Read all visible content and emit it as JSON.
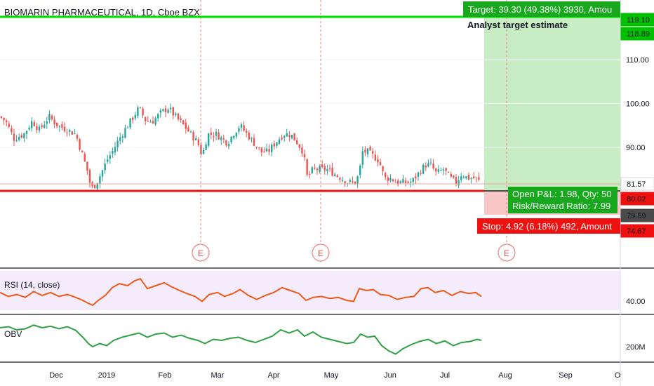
{
  "header": {
    "symbol_title": "BIOMARIN PHARMACEUTICAL, 1D, Cboe BZX"
  },
  "annotations": {
    "target_box": "Target: 39.30 (49.38%) 3930, Amou",
    "analyst_label": "Analyst target estimate",
    "pnl_line1": "Open P&L: 1.98, Qty: 50",
    "pnl_line2": "Risk/Reward Ratio: 7.99",
    "stop_box": "Stop: 4.92 (6.18%) 492, Amount",
    "earnings_marker": "E"
  },
  "price_badges": [
    {
      "label": "119.10",
      "value": 119.1,
      "color": "#00c000",
      "text_color": "#ffffff"
    },
    {
      "label": "118.89",
      "value": 118.89,
      "color": "#00c000",
      "text_color": "#ffffff"
    },
    {
      "label": "81.57",
      "value": 81.57,
      "color": "#ffffff",
      "text_color": "#131722"
    },
    {
      "label": "80.02",
      "value": 80.02,
      "color": "#ef1010",
      "text_color": "#ffffff"
    },
    {
      "label": "79.59",
      "value": 79.59,
      "color": "#4a4a4a",
      "text_color": "#ffffff"
    },
    {
      "label": "74.67",
      "value": 74.67,
      "color": "#ef1010",
      "text_color": "#ffffff"
    }
  ],
  "colors": {
    "up_candle": "#26a69a",
    "down_candle": "#ef5350",
    "rsi_line": "#f05a16",
    "obv_line": "#2ea043",
    "target_line": "#00e000",
    "support_line": "#e31414",
    "rsi_band": "#efe2fb"
  },
  "chart_data": [
    {
      "type": "candlestick",
      "title": "BIOMARIN PHARMACEUTICAL, 1D, Cboe BZX",
      "xlabel": "",
      "ylabel": "",
      "ylim": [
        70,
        122
      ],
      "y_ticks": [
        "110.00",
        "100.00",
        "90.00"
      ],
      "y_tick_values": [
        110,
        100,
        90
      ],
      "x_ticks": [
        "Dec",
        "2019",
        "Feb",
        "Mar",
        "Apr",
        "May",
        "Jun",
        "Jul",
        "Aug",
        "Sep",
        "O"
      ],
      "series": [
        {
          "close_path": [
            {
              "x": 0,
              "y": 97
            },
            {
              "x": 8,
              "y": 96
            },
            {
              "x": 20,
              "y": 92
            },
            {
              "x": 34,
              "y": 93
            },
            {
              "x": 46,
              "y": 96
            },
            {
              "x": 56,
              "y": 94
            },
            {
              "x": 70,
              "y": 97
            },
            {
              "x": 82,
              "y": 95
            },
            {
              "x": 96,
              "y": 94
            },
            {
              "x": 108,
              "y": 93
            },
            {
              "x": 116,
              "y": 89
            },
            {
              "x": 124,
              "y": 85
            },
            {
              "x": 130,
              "y": 80.5
            },
            {
              "x": 136,
              "y": 81.5
            },
            {
              "x": 144,
              "y": 84
            },
            {
              "x": 152,
              "y": 87
            },
            {
              "x": 160,
              "y": 89
            },
            {
              "x": 170,
              "y": 92
            },
            {
              "x": 178,
              "y": 94
            },
            {
              "x": 190,
              "y": 97
            },
            {
              "x": 198,
              "y": 99
            },
            {
              "x": 208,
              "y": 96
            },
            {
              "x": 218,
              "y": 96
            },
            {
              "x": 230,
              "y": 98
            },
            {
              "x": 240,
              "y": 99
            },
            {
              "x": 250,
              "y": 97
            },
            {
              "x": 262,
              "y": 95
            },
            {
              "x": 272,
              "y": 93
            },
            {
              "x": 282,
              "y": 91
            },
            {
              "x": 288,
              "y": 88
            },
            {
              "x": 296,
              "y": 93
            },
            {
              "x": 308,
              "y": 93
            },
            {
              "x": 316,
              "y": 92
            },
            {
              "x": 324,
              "y": 91
            },
            {
              "x": 332,
              "y": 93
            },
            {
              "x": 342,
              "y": 95
            },
            {
              "x": 352,
              "y": 93
            },
            {
              "x": 362,
              "y": 91
            },
            {
              "x": 372,
              "y": 89
            },
            {
              "x": 382,
              "y": 89
            },
            {
              "x": 392,
              "y": 91
            },
            {
              "x": 404,
              "y": 93
            },
            {
              "x": 414,
              "y": 93
            },
            {
              "x": 424,
              "y": 91
            },
            {
              "x": 432,
              "y": 89
            },
            {
              "x": 438,
              "y": 83
            },
            {
              "x": 446,
              "y": 85
            },
            {
              "x": 456,
              "y": 85
            },
            {
              "x": 466,
              "y": 85
            },
            {
              "x": 476,
              "y": 84
            },
            {
              "x": 486,
              "y": 83
            },
            {
              "x": 496,
              "y": 82
            },
            {
              "x": 506,
              "y": 82
            },
            {
              "x": 512,
              "y": 84
            },
            {
              "x": 516,
              "y": 89
            },
            {
              "x": 524,
              "y": 89
            },
            {
              "x": 532,
              "y": 88
            },
            {
              "x": 540,
              "y": 87
            },
            {
              "x": 548,
              "y": 83
            },
            {
              "x": 556,
              "y": 83
            },
            {
              "x": 566,
              "y": 82
            },
            {
              "x": 576,
              "y": 82
            },
            {
              "x": 586,
              "y": 82
            },
            {
              "x": 596,
              "y": 84
            },
            {
              "x": 606,
              "y": 86
            },
            {
              "x": 614,
              "y": 86
            },
            {
              "x": 622,
              "y": 84
            },
            {
              "x": 632,
              "y": 85
            },
            {
              "x": 642,
              "y": 83
            },
            {
              "x": 650,
              "y": 82
            },
            {
              "x": 658,
              "y": 84
            },
            {
              "x": 666,
              "y": 83
            },
            {
              "x": 676,
              "y": 83
            },
            {
              "x": 686,
              "y": 82
            }
          ]
        }
      ]
    },
    {
      "type": "line",
      "title": "RSI (14, close)",
      "ylim": [
        30,
        70
      ],
      "y_ticks": [
        "40.00"
      ],
      "y_tick_values": [
        40
      ],
      "series": [
        {
          "name": "RSI (14, close)",
          "values": [
            {
              "x": 0,
              "y": 48
            },
            {
              "x": 12,
              "y": 44
            },
            {
              "x": 24,
              "y": 46
            },
            {
              "x": 36,
              "y": 43
            },
            {
              "x": 48,
              "y": 49
            },
            {
              "x": 60,
              "y": 45
            },
            {
              "x": 72,
              "y": 48
            },
            {
              "x": 84,
              "y": 44
            },
            {
              "x": 96,
              "y": 46
            },
            {
              "x": 108,
              "y": 43
            },
            {
              "x": 118,
              "y": 40
            },
            {
              "x": 126,
              "y": 37
            },
            {
              "x": 132,
              "y": 35
            },
            {
              "x": 140,
              "y": 40
            },
            {
              "x": 150,
              "y": 45
            },
            {
              "x": 160,
              "y": 53
            },
            {
              "x": 170,
              "y": 57
            },
            {
              "x": 182,
              "y": 55
            },
            {
              "x": 192,
              "y": 60
            },
            {
              "x": 200,
              "y": 62
            },
            {
              "x": 210,
              "y": 52
            },
            {
              "x": 222,
              "y": 55
            },
            {
              "x": 234,
              "y": 58
            },
            {
              "x": 244,
              "y": 54
            },
            {
              "x": 256,
              "y": 50
            },
            {
              "x": 266,
              "y": 47
            },
            {
              "x": 278,
              "y": 44
            },
            {
              "x": 288,
              "y": 39
            },
            {
              "x": 298,
              "y": 46
            },
            {
              "x": 310,
              "y": 48
            },
            {
              "x": 320,
              "y": 44
            },
            {
              "x": 332,
              "y": 47
            },
            {
              "x": 342,
              "y": 51
            },
            {
              "x": 354,
              "y": 45
            },
            {
              "x": 366,
              "y": 41
            },
            {
              "x": 378,
              "y": 45
            },
            {
              "x": 390,
              "y": 48
            },
            {
              "x": 402,
              "y": 53
            },
            {
              "x": 414,
              "y": 50
            },
            {
              "x": 426,
              "y": 47
            },
            {
              "x": 436,
              "y": 40
            },
            {
              "x": 446,
              "y": 43
            },
            {
              "x": 458,
              "y": 44
            },
            {
              "x": 470,
              "y": 42
            },
            {
              "x": 482,
              "y": 43
            },
            {
              "x": 494,
              "y": 40
            },
            {
              "x": 504,
              "y": 39
            },
            {
              "x": 512,
              "y": 52
            },
            {
              "x": 522,
              "y": 50
            },
            {
              "x": 532,
              "y": 51
            },
            {
              "x": 542,
              "y": 46
            },
            {
              "x": 554,
              "y": 45
            },
            {
              "x": 566,
              "y": 41
            },
            {
              "x": 578,
              "y": 43
            },
            {
              "x": 590,
              "y": 44
            },
            {
              "x": 600,
              "y": 52
            },
            {
              "x": 610,
              "y": 53
            },
            {
              "x": 620,
              "y": 48
            },
            {
              "x": 632,
              "y": 50
            },
            {
              "x": 644,
              "y": 45
            },
            {
              "x": 656,
              "y": 49
            },
            {
              "x": 668,
              "y": 47
            },
            {
              "x": 678,
              "y": 48
            },
            {
              "x": 686,
              "y": 44
            }
          ]
        }
      ]
    },
    {
      "type": "line",
      "title": "OBV",
      "y_ticks": [
        "200M"
      ],
      "series": [
        {
          "name": "OBV",
          "values": [
            {
              "x": 0,
              "y": 280
            },
            {
              "x": 12,
              "y": 282
            },
            {
              "x": 24,
              "y": 276
            },
            {
              "x": 36,
              "y": 278
            },
            {
              "x": 48,
              "y": 285
            },
            {
              "x": 60,
              "y": 280
            },
            {
              "x": 72,
              "y": 283
            },
            {
              "x": 84,
              "y": 278
            },
            {
              "x": 96,
              "y": 282
            },
            {
              "x": 108,
              "y": 275
            },
            {
              "x": 118,
              "y": 262
            },
            {
              "x": 126,
              "y": 250
            },
            {
              "x": 132,
              "y": 244
            },
            {
              "x": 142,
              "y": 250
            },
            {
              "x": 152,
              "y": 246
            },
            {
              "x": 162,
              "y": 256
            },
            {
              "x": 174,
              "y": 262
            },
            {
              "x": 186,
              "y": 266
            },
            {
              "x": 198,
              "y": 270
            },
            {
              "x": 210,
              "y": 262
            },
            {
              "x": 222,
              "y": 268
            },
            {
              "x": 234,
              "y": 270
            },
            {
              "x": 246,
              "y": 262
            },
            {
              "x": 258,
              "y": 266
            },
            {
              "x": 270,
              "y": 260
            },
            {
              "x": 282,
              "y": 256
            },
            {
              "x": 292,
              "y": 250
            },
            {
              "x": 304,
              "y": 258
            },
            {
              "x": 316,
              "y": 256
            },
            {
              "x": 328,
              "y": 260
            },
            {
              "x": 340,
              "y": 262
            },
            {
              "x": 352,
              "y": 256
            },
            {
              "x": 364,
              "y": 252
            },
            {
              "x": 376,
              "y": 258
            },
            {
              "x": 388,
              "y": 264
            },
            {
              "x": 400,
              "y": 276
            },
            {
              "x": 412,
              "y": 270
            },
            {
              "x": 424,
              "y": 276
            },
            {
              "x": 434,
              "y": 264
            },
            {
              "x": 446,
              "y": 272
            },
            {
              "x": 458,
              "y": 262
            },
            {
              "x": 470,
              "y": 258
            },
            {
              "x": 482,
              "y": 254
            },
            {
              "x": 494,
              "y": 250
            },
            {
              "x": 504,
              "y": 252
            },
            {
              "x": 514,
              "y": 268
            },
            {
              "x": 524,
              "y": 262
            },
            {
              "x": 534,
              "y": 264
            },
            {
              "x": 544,
              "y": 246
            },
            {
              "x": 554,
              "y": 236
            },
            {
              "x": 564,
              "y": 230
            },
            {
              "x": 574,
              "y": 240
            },
            {
              "x": 586,
              "y": 248
            },
            {
              "x": 598,
              "y": 254
            },
            {
              "x": 610,
              "y": 258
            },
            {
              "x": 622,
              "y": 250
            },
            {
              "x": 634,
              "y": 255
            },
            {
              "x": 646,
              "y": 246
            },
            {
              "x": 658,
              "y": 252
            },
            {
              "x": 670,
              "y": 254
            },
            {
              "x": 680,
              "y": 258
            },
            {
              "x": 686,
              "y": 256
            }
          ]
        }
      ]
    }
  ]
}
